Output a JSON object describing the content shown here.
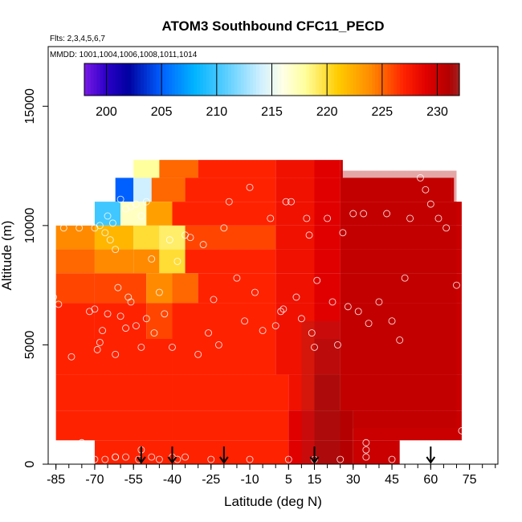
{
  "chart_data": {
    "type": "heatmap",
    "title": "ATOM3 Southbound CFC11_PECD",
    "subtitle_flights": "Flts: 2,3,4,5,6,7",
    "subtitle_dates": "MMDD: 1001,1004,1006,1008,1011,1014",
    "xlabel": "Latitude (deg N)",
    "ylabel": "Altitude (m)",
    "xlim": [
      -88,
      86
    ],
    "ylim": [
      0,
      17500
    ],
    "x_ticks": [
      -85,
      -70,
      -55,
      -40,
      -25,
      -10,
      5,
      15,
      30,
      45,
      60,
      75
    ],
    "x_tick_labels": [
      "-85",
      "-70",
      "-55",
      "-40",
      "-25",
      "-10",
      "5",
      "15",
      "30",
      "45",
      "60",
      "75"
    ],
    "y_ticks": [
      0,
      5000,
      10000,
      15000
    ],
    "y_tick_labels": [
      "0",
      "5000",
      "10000",
      "15000"
    ],
    "colorbar": {
      "min": 198,
      "max": 232,
      "ticks": [
        200,
        205,
        210,
        215,
        220,
        225,
        230
      ],
      "tick_labels": [
        "200",
        "205",
        "210",
        "215",
        "220",
        "225",
        "230"
      ],
      "stops": [
        {
          "v": 198,
          "color": "#7a19e6"
        },
        {
          "v": 200,
          "color": "#2b00c8"
        },
        {
          "v": 202,
          "color": "#0000a0"
        },
        {
          "v": 205,
          "color": "#0060ff"
        },
        {
          "v": 208,
          "color": "#00b4ff"
        },
        {
          "v": 211,
          "color": "#60d0ff"
        },
        {
          "v": 214,
          "color": "#d0f0ff"
        },
        {
          "v": 216,
          "color": "#ffffe6"
        },
        {
          "v": 218,
          "color": "#ffff9e"
        },
        {
          "v": 221,
          "color": "#ffcc00"
        },
        {
          "v": 224,
          "color": "#ff8a00"
        },
        {
          "v": 227,
          "color": "#ff2200"
        },
        {
          "v": 229,
          "color": "#e00000"
        },
        {
          "v": 231,
          "color": "#b40000"
        },
        {
          "v": 232,
          "color": "#a02020"
        }
      ]
    },
    "field_rows": [
      {
        "alt": 12500,
        "segments": [
          [
            -55,
            218
          ],
          [
            -45,
            225
          ],
          [
            -30,
            227
          ],
          [
            0,
            228
          ],
          [
            15,
            229
          ],
          [
            25,
            230
          ]
        ]
      },
      {
        "alt": 11500,
        "segments": [
          [
            -62,
            205
          ],
          [
            -55,
            214
          ],
          [
            -48,
            225
          ],
          [
            -35,
            227
          ],
          [
            0,
            228
          ],
          [
            15,
            229
          ],
          [
            25,
            230
          ],
          [
            68,
            230
          ]
        ]
      },
      {
        "alt": 10500,
        "segments": [
          [
            -70,
            210
          ],
          [
            -60,
            217
          ],
          [
            -50,
            223
          ],
          [
            -40,
            227
          ],
          [
            0,
            228
          ],
          [
            15,
            229
          ],
          [
            25,
            230
          ],
          [
            70,
            230
          ]
        ]
      },
      {
        "alt": 9500,
        "segments": [
          [
            -85,
            224
          ],
          [
            -70,
            222
          ],
          [
            -55,
            220
          ],
          [
            -45,
            219
          ],
          [
            -35,
            226
          ],
          [
            0,
            228
          ],
          [
            15,
            229
          ],
          [
            25,
            230
          ],
          [
            70,
            230
          ]
        ]
      },
      {
        "alt": 8500,
        "segments": [
          [
            -85,
            225
          ],
          [
            -70,
            224
          ],
          [
            -55,
            224
          ],
          [
            -45,
            220
          ],
          [
            -35,
            227
          ],
          [
            0,
            228
          ],
          [
            15,
            229
          ],
          [
            25,
            230
          ],
          [
            72,
            230
          ]
        ]
      },
      {
        "alt": 7500,
        "segments": [
          [
            -85,
            226
          ],
          [
            -70,
            226
          ],
          [
            -50,
            224
          ],
          [
            -40,
            225
          ],
          [
            -30,
            227
          ],
          [
            0,
            228
          ],
          [
            15,
            229
          ],
          [
            25,
            230
          ],
          [
            72,
            230
          ]
        ]
      },
      {
        "alt": 6000,
        "segments": [
          [
            -85,
            227
          ],
          [
            -70,
            227
          ],
          [
            -50,
            226
          ],
          [
            -40,
            227
          ],
          [
            0,
            228
          ],
          [
            15,
            229
          ],
          [
            25,
            230
          ],
          [
            72,
            230
          ]
        ]
      },
      {
        "alt": 4500,
        "segments": [
          [
            -85,
            227
          ],
          [
            -40,
            227
          ],
          [
            0,
            228
          ],
          [
            15,
            230
          ],
          [
            25,
            230
          ],
          [
            72,
            230
          ]
        ]
      },
      {
        "alt": 3000,
        "segments": [
          [
            -85,
            227
          ],
          [
            -40,
            227
          ],
          [
            5,
            228
          ],
          [
            15,
            231
          ],
          [
            25,
            230
          ],
          [
            72,
            230
          ]
        ]
      },
      {
        "alt": 1500,
        "segments": [
          [
            -85,
            227
          ],
          [
            -40,
            227
          ],
          [
            5,
            229
          ],
          [
            15,
            231
          ],
          [
            30,
            230
          ],
          [
            72,
            230
          ]
        ]
      },
      {
        "alt": 500,
        "segments": [
          [
            -70,
            227
          ],
          [
            -40,
            227
          ],
          [
            5,
            229
          ],
          [
            15,
            231
          ],
          [
            30,
            230
          ],
          [
            47,
            230
          ]
        ]
      }
    ],
    "observation_points": [
      [
        -86,
        7000
      ],
      [
        -84,
        6700
      ],
      [
        -82,
        9900
      ],
      [
        -79,
        4500
      ],
      [
        -76,
        9900
      ],
      [
        -72,
        6400
      ],
      [
        -70,
        6500
      ],
      [
        -69,
        4800
      ],
      [
        -68,
        5100
      ],
      [
        -67,
        5600
      ],
      [
        -65,
        6300
      ],
      [
        -62,
        4600
      ],
      [
        -61,
        7400
      ],
      [
        -60,
        6200
      ],
      [
        -58,
        5700
      ],
      [
        -57,
        7000
      ],
      [
        -56,
        6800
      ],
      [
        -54,
        5800
      ],
      [
        -52,
        4900
      ],
      [
        -50,
        6100
      ],
      [
        -48,
        8600
      ],
      [
        -47,
        5500
      ],
      [
        -45,
        7200
      ],
      [
        -43,
        6300
      ],
      [
        -41,
        9400
      ],
      [
        -40,
        4900
      ],
      [
        -38,
        8500
      ],
      [
        -35,
        9600
      ],
      [
        -33,
        9500
      ],
      [
        -30,
        4600
      ],
      [
        -28,
        9200
      ],
      [
        -26,
        5500
      ],
      [
        -24,
        6900
      ],
      [
        -22,
        5000
      ],
      [
        -20,
        9900
      ],
      [
        -18,
        11000
      ],
      [
        -15,
        7800
      ],
      [
        -12,
        6000
      ],
      [
        -10,
        11600
      ],
      [
        -8,
        7200
      ],
      [
        -5,
        5600
      ],
      [
        -2,
        10300
      ],
      [
        0,
        5800
      ],
      [
        2,
        6400
      ],
      [
        3,
        6500
      ],
      [
        4,
        11000
      ],
      [
        6,
        11000
      ],
      [
        8,
        7000
      ],
      [
        10,
        6100
      ],
      [
        12,
        10300
      ],
      [
        13,
        9600
      ],
      [
        14,
        5500
      ],
      [
        15,
        4900
      ],
      [
        16,
        7700
      ],
      [
        20,
        10300
      ],
      [
        22,
        6800
      ],
      [
        24,
        5000
      ],
      [
        26,
        9700
      ],
      [
        28,
        6600
      ],
      [
        30,
        10500
      ],
      [
        32,
        6400
      ],
      [
        34,
        10500
      ],
      [
        36,
        5900
      ],
      [
        40,
        6800
      ],
      [
        43,
        10500
      ],
      [
        45,
        6000
      ],
      [
        48,
        5200
      ],
      [
        50,
        7800
      ],
      [
        52,
        10300
      ],
      [
        56,
        12000
      ],
      [
        58,
        11500
      ],
      [
        60,
        10900
      ],
      [
        63,
        10300
      ],
      [
        66,
        9900
      ],
      [
        70,
        7500
      ],
      [
        72,
        1400
      ],
      [
        -70,
        200
      ],
      [
        -66,
        200
      ],
      [
        -62,
        300
      ],
      [
        -58,
        300
      ],
      [
        -53,
        200
      ],
      [
        -45,
        200
      ],
      [
        -35,
        300
      ],
      [
        -25,
        200
      ],
      [
        -10,
        200
      ],
      [
        5,
        200
      ],
      [
        15,
        200
      ],
      [
        25,
        200
      ],
      [
        35,
        300
      ],
      [
        45,
        200
      ],
      [
        55,
        200
      ],
      [
        35,
        900
      ],
      [
        35,
        600
      ],
      [
        -75,
        900
      ],
      [
        -62,
        300
      ],
      [
        -52,
        600
      ],
      [
        -48,
        300
      ],
      [
        -40,
        300
      ],
      [
        -38,
        200
      ]
    ],
    "arrow_latitudes": [
      -52,
      -40,
      -20,
      15,
      60
    ],
    "upper_left_dots": [
      [
        -74,
        10400
      ],
      [
        -72,
        10200
      ],
      [
        -70,
        9900
      ],
      [
        -68,
        10000
      ],
      [
        -66,
        9700
      ],
      [
        -64,
        9400
      ],
      [
        -62,
        9000
      ],
      [
        -60,
        11100
      ],
      [
        -58,
        10700
      ],
      [
        -56,
        10800
      ],
      [
        -54,
        10900
      ],
      [
        -52,
        10400
      ],
      [
        -50,
        11000
      ],
      [
        -65,
        10400
      ],
      [
        -63,
        10100
      ]
    ]
  }
}
